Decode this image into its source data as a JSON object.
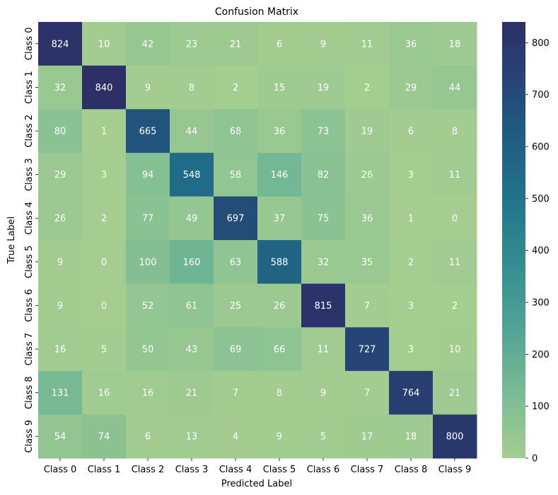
{
  "chart_data": {
    "type": "heatmap",
    "title": "Confusion Matrix",
    "xlabel": "Predicted Label",
    "ylabel": "True Label",
    "x_categories": [
      "Class 0",
      "Class 1",
      "Class 2",
      "Class 3",
      "Class 4",
      "Class 5",
      "Class 6",
      "Class 7",
      "Class 8",
      "Class 9"
    ],
    "y_categories": [
      "Class 0",
      "Class 1",
      "Class 2",
      "Class 3",
      "Class 4",
      "Class 5",
      "Class 6",
      "Class 7",
      "Class 8",
      "Class 9"
    ],
    "values": [
      [
        824,
        10,
        42,
        23,
        21,
        6,
        9,
        11,
        36,
        18
      ],
      [
        32,
        840,
        9,
        8,
        2,
        15,
        19,
        2,
        29,
        44
      ],
      [
        80,
        1,
        665,
        44,
        68,
        36,
        73,
        19,
        6,
        8
      ],
      [
        29,
        3,
        94,
        548,
        58,
        146,
        82,
        26,
        3,
        11
      ],
      [
        26,
        2,
        77,
        49,
        697,
        37,
        75,
        36,
        1,
        0
      ],
      [
        9,
        0,
        100,
        160,
        63,
        588,
        32,
        35,
        2,
        11
      ],
      [
        9,
        0,
        52,
        61,
        25,
        26,
        815,
        7,
        3,
        2
      ],
      [
        16,
        5,
        50,
        43,
        69,
        66,
        11,
        727,
        3,
        10
      ],
      [
        131,
        16,
        16,
        21,
        7,
        8,
        9,
        7,
        764,
        21
      ],
      [
        54,
        74,
        6,
        13,
        4,
        9,
        5,
        17,
        18,
        800
      ]
    ],
    "colorscale": "crest",
    "colorbar": {
      "range": [
        0,
        840
      ],
      "ticks": [
        0,
        100,
        200,
        300,
        400,
        500,
        600,
        700,
        800
      ]
    },
    "legend": "none",
    "grid": false
  }
}
